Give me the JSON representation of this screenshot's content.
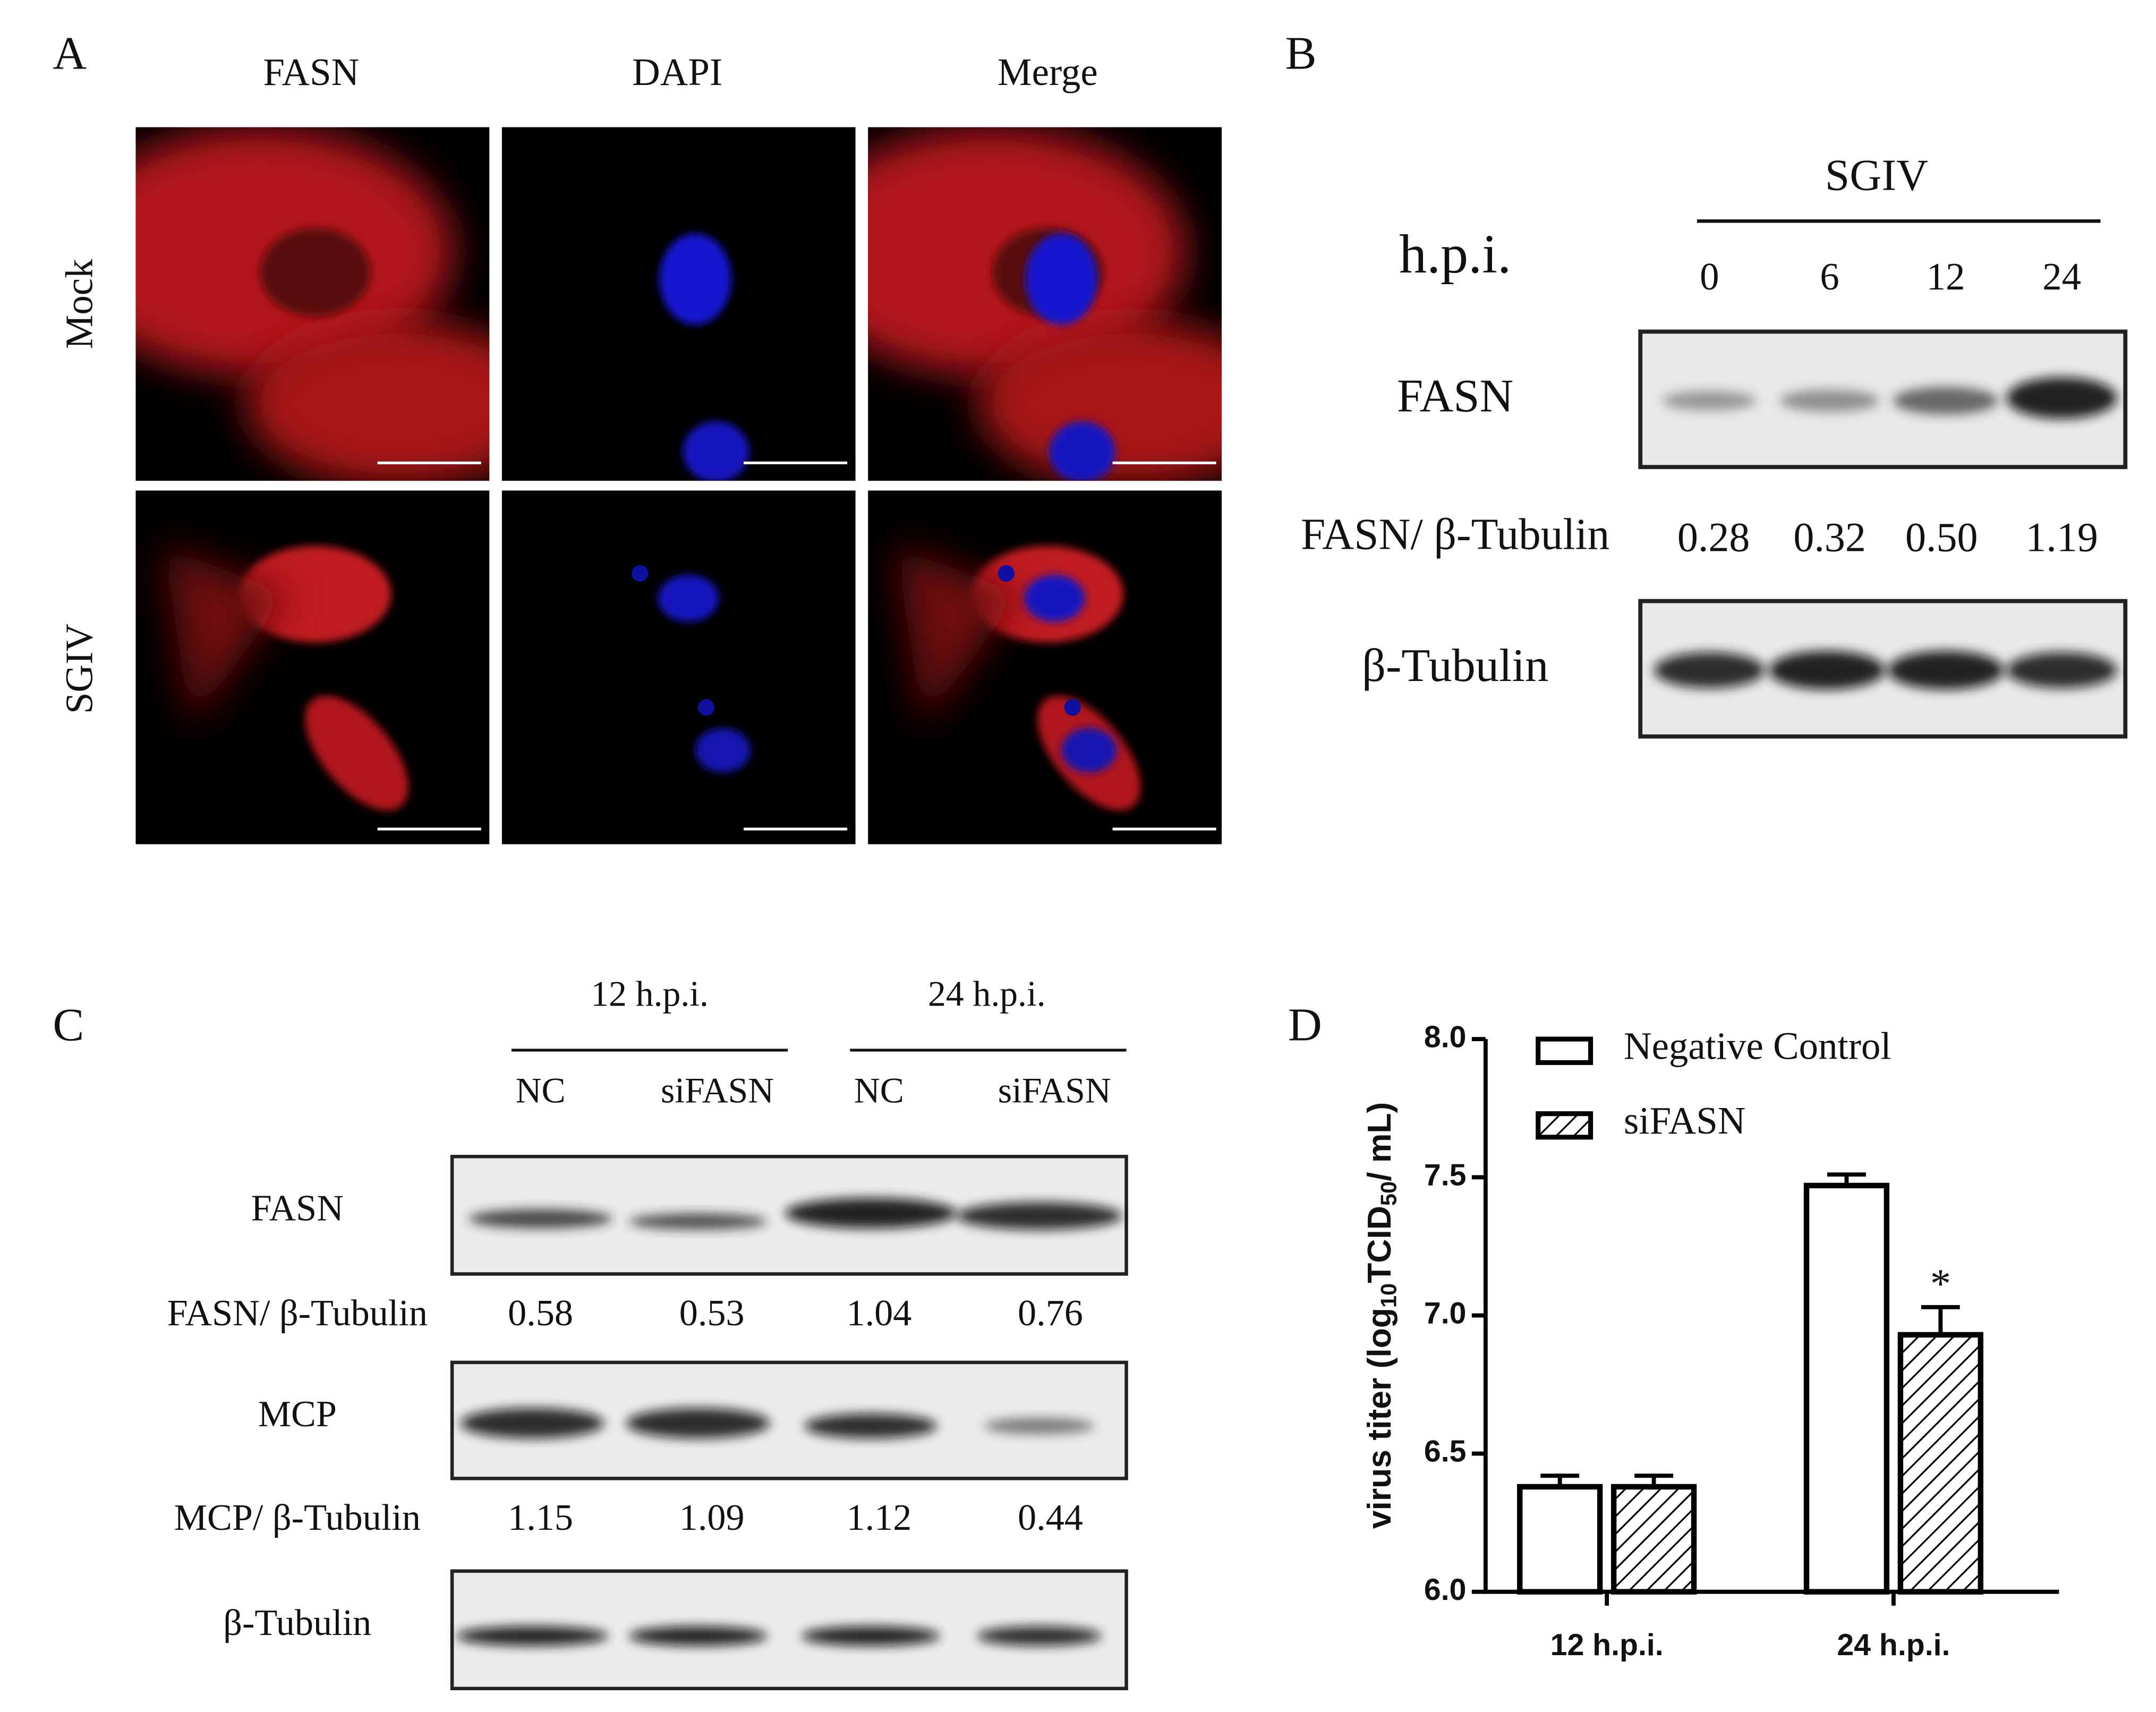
{
  "panel_a": {
    "label": "A",
    "columns": [
      "FASN",
      "DAPI",
      "Merge"
    ],
    "rows": [
      "Mock",
      "SGIV"
    ]
  },
  "panel_b": {
    "label": "B",
    "group": "SGIV",
    "time_label": "h.p.i.",
    "lanes": [
      "0",
      "6",
      "12",
      "24"
    ],
    "blots": [
      "FASN",
      "β-Tubulin"
    ],
    "ratio": {
      "label": "FASN/ β-Tubulin",
      "values": [
        "0.28",
        "0.32",
        "0.50",
        "1.19"
      ]
    }
  },
  "panel_c": {
    "label": "C",
    "groups": [
      "12 h.p.i.",
      "24 h.p.i."
    ],
    "lanes": [
      "NC",
      "siFASN",
      "NC",
      "siFASN"
    ],
    "blots": [
      "FASN",
      "MCP",
      "β-Tubulin"
    ],
    "ratios": [
      {
        "label": "FASN/ β-Tubulin",
        "values": [
          "0.58",
          "0.53",
          "1.04",
          "0.76"
        ]
      },
      {
        "label": "MCP/ β-Tubulin",
        "values": [
          "1.15",
          "1.09",
          "1.12",
          "0.44"
        ]
      }
    ]
  },
  "chart_data": {
    "type": "bar",
    "label": "D",
    "y_label": [
      "virus titer (log",
      "10",
      "TCID",
      "50",
      "/ mL)"
    ],
    "categories": [
      "12 h.p.i.",
      "24 h.p.i."
    ],
    "series": [
      {
        "name": "Negative Control",
        "color": "#ffffff",
        "hatch": false,
        "values": [
          6.38,
          7.47
        ],
        "errors": [
          0.04,
          0.04
        ],
        "significance": [
          null,
          null
        ]
      },
      {
        "name": "siFASN",
        "color": "#ffffff",
        "hatch": true,
        "values": [
          6.38,
          6.93
        ],
        "errors": [
          0.04,
          0.1
        ],
        "significance": [
          null,
          "*"
        ]
      }
    ],
    "ylim": [
      6.0,
      8.0
    ],
    "yticks": [
      {
        "value": 6,
        "label": "6.0"
      },
      {
        "value": 6.5,
        "label": "6.5"
      },
      {
        "value": 7,
        "label": "7.0"
      },
      {
        "value": 7.5,
        "label": "7.5"
      },
      {
        "value": 8,
        "label": "8.0"
      }
    ],
    "legend": "top-left"
  }
}
